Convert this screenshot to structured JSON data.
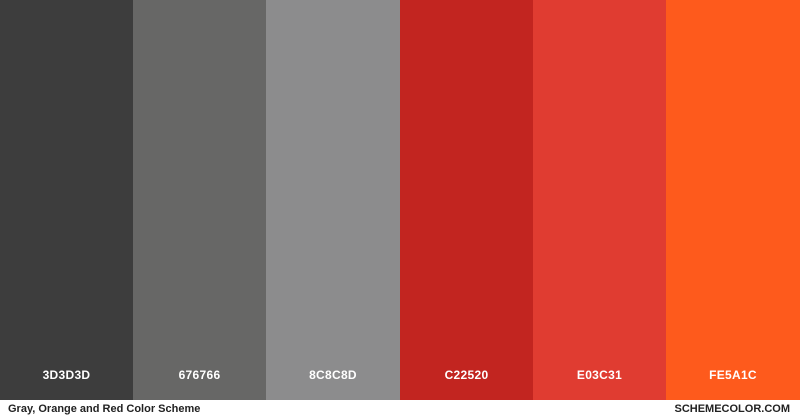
{
  "swatches": [
    {
      "hex": "3D3D3D",
      "color": "#3D3D3D"
    },
    {
      "hex": "676766",
      "color": "#676766"
    },
    {
      "hex": "8C8C8D",
      "color": "#8C8C8D"
    },
    {
      "hex": "C22520",
      "color": "#C22520"
    },
    {
      "hex": "E03C31",
      "color": "#E03C31"
    },
    {
      "hex": "FE5A1C",
      "color": "#FE5A1C"
    }
  ],
  "footer": {
    "title": "Gray, Orange and Red Color Scheme",
    "site": "SCHEMECOLOR.COM"
  }
}
